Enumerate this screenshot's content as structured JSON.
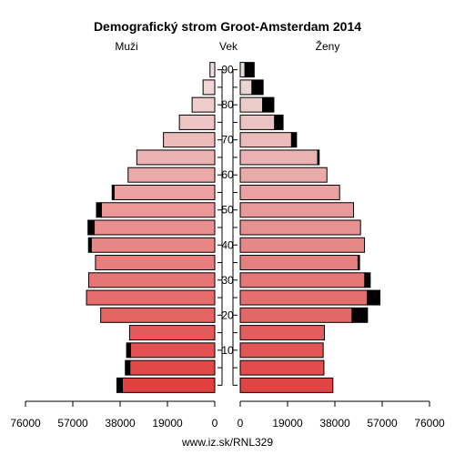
{
  "chart_data": {
    "type": "bar",
    "title": "Demografický strom Groot-Amsterdam 2014",
    "left_label": "Muži",
    "center_label": "Vek",
    "right_label": "Ženy",
    "footer": "www.iz.sk/RNL329",
    "age_groups": [
      "0",
      "5",
      "10",
      "15",
      "20",
      "25",
      "30",
      "35",
      "40",
      "45",
      "50",
      "55",
      "60",
      "65",
      "70",
      "75",
      "80",
      "85",
      "90"
    ],
    "age_tick_labels": [
      "10",
      "20",
      "30",
      "40",
      "50",
      "60",
      "70",
      "80",
      "90"
    ],
    "x_tick_labels_left": [
      "76000",
      "57000",
      "38000",
      "19000",
      "0"
    ],
    "x_tick_labels_right": [
      "0",
      "19000",
      "38000",
      "57000",
      "76000"
    ],
    "xlim": [
      0,
      76000
    ],
    "series": [
      {
        "name": "Muži",
        "values": [
          37100,
          34100,
          33800,
          34200,
          45800,
          51500,
          50600,
          47900,
          49600,
          48400,
          45500,
          40400,
          34800,
          31300,
          20600,
          14200,
          9100,
          4700,
          1900
        ],
        "surplus": [
          2200,
          1800,
          1600,
          0,
          0,
          0,
          0,
          0,
          1100,
          2500,
          2000,
          800,
          0,
          0,
          0,
          0,
          0,
          0,
          0
        ]
      },
      {
        "name": "Ženy",
        "values": [
          37200,
          33600,
          33300,
          33800,
          44900,
          51000,
          50000,
          47300,
          49900,
          48300,
          45500,
          39900,
          34800,
          31100,
          20600,
          13800,
          9000,
          4700,
          1900
        ],
        "surplus": [
          0,
          0,
          0,
          0,
          6200,
          5100,
          2200,
          600,
          0,
          0,
          0,
          0,
          0,
          600,
          2000,
          3400,
          4500,
          4500,
          3700
        ]
      }
    ],
    "colors": {
      "male_bottom": "#e04040",
      "male_top": "#f2dede",
      "female_bottom": "#e04545",
      "female_top": "#eedcdc",
      "surplus": "#000000",
      "bar_stroke": "#000000"
    }
  }
}
